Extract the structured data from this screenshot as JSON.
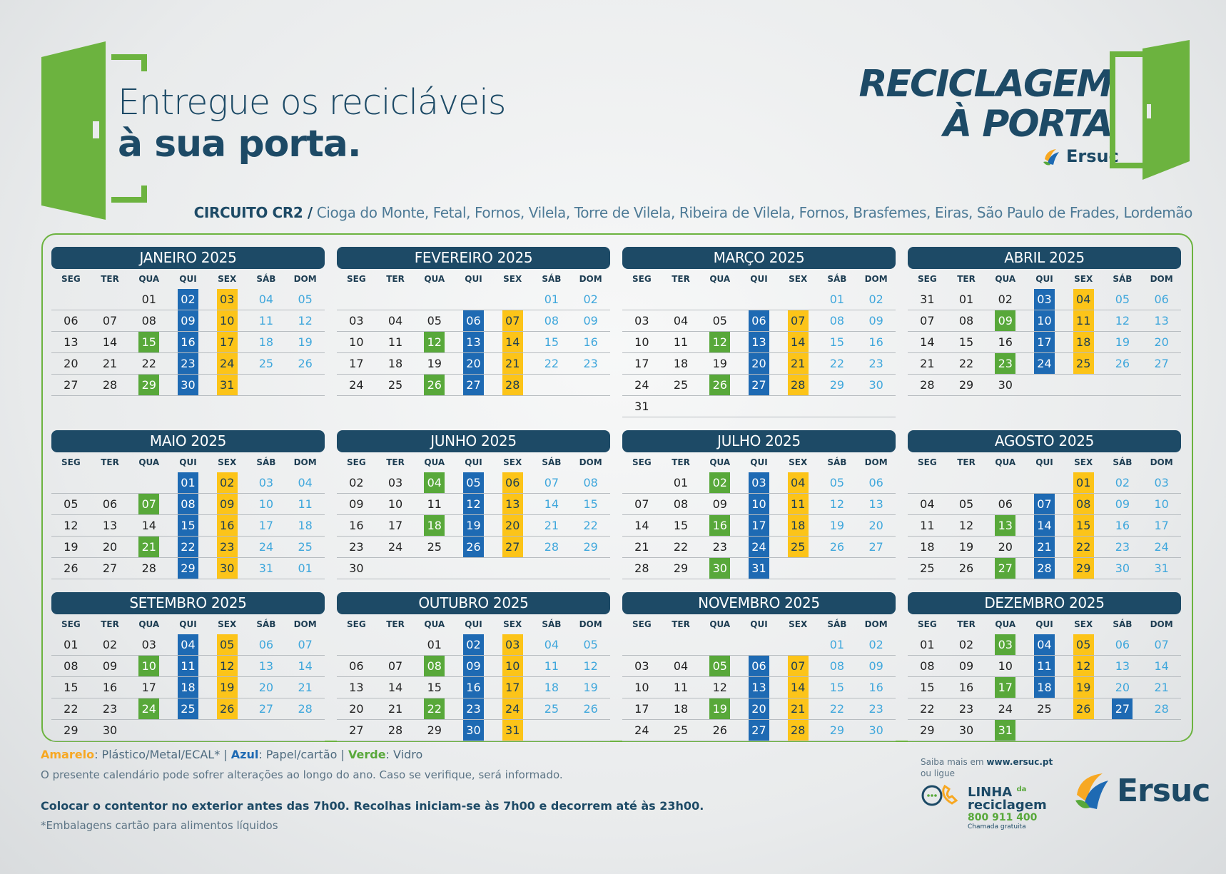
{
  "header": {
    "headline_line1": "Entregue os recicláveis",
    "headline_line2": "à sua porta.",
    "brand_line1": "RECICLAGEM",
    "brand_line2": "À PORTA",
    "brand_company": "Ersuc",
    "circuit_code": "CIRCUITO CR2 /",
    "circuit_places": " Cioga do Monte, Fetal, Fornos, Vilela, Torre de Vilela, Ribeira de Vilela, Fornos, Brasfemes, Eiras, São Paulo de Frades, Lordemão"
  },
  "colors": {
    "yellow": "#fcc419",
    "blue": "#1e6ab3",
    "green": "#58a83a",
    "navy": "#1d4a66",
    "weekend": "#3fa7dc"
  },
  "weekdays": [
    "SEG",
    "TER",
    "QUA",
    "QUI",
    "SEX",
    "SÁB",
    "DOM"
  ],
  "months": [
    {
      "title": "JANEIRO 2025",
      "offset": 2,
      "days": 31,
      "yellow": [
        3,
        10,
        17,
        24,
        31
      ],
      "blue": [
        2,
        9,
        16,
        23,
        30
      ],
      "green": [
        15,
        29
      ],
      "trailing": []
    },
    {
      "title": "FEVEREIRO 2025",
      "offset": 5,
      "days": 28,
      "yellow": [
        7,
        14,
        21,
        28
      ],
      "blue": [
        6,
        13,
        20,
        27
      ],
      "green": [
        12,
        26
      ],
      "trailing": []
    },
    {
      "title": "MARÇO 2025",
      "offset": 5,
      "days": 31,
      "yellow": [
        7,
        14,
        21,
        28
      ],
      "blue": [
        6,
        13,
        20,
        27
      ],
      "green": [
        12,
        26
      ],
      "trailing": []
    },
    {
      "title": "ABRIL 2025",
      "offset": 1,
      "days": 30,
      "leading": [
        "31"
      ],
      "yellow": [
        4,
        11,
        18,
        25
      ],
      "blue": [
        3,
        10,
        17,
        24
      ],
      "green": [
        9,
        23
      ],
      "trailing": []
    },
    {
      "title": "MAIO 2025",
      "offset": 3,
      "days": 31,
      "yellow": [
        2,
        9,
        16,
        23,
        30
      ],
      "blue": [
        1,
        8,
        15,
        22,
        29
      ],
      "green": [
        7,
        21
      ],
      "trailing": [
        "01"
      ]
    },
    {
      "title": "JUNHO 2025",
      "offset": 0,
      "days": 30,
      "leading": [
        "02"
      ],
      "start": 3,
      "yellow": [
        6,
        13,
        20,
        27
      ],
      "blue": [
        5,
        12,
        19,
        26
      ],
      "green": [
        4,
        18
      ],
      "trailing": []
    },
    {
      "title": "JULHO 2025",
      "offset": 1,
      "days": 31,
      "yellow": [
        4,
        11,
        18,
        25
      ],
      "blue": [
        3,
        10,
        17,
        24,
        31
      ],
      "green": [
        2,
        16,
        30
      ],
      "trailing": []
    },
    {
      "title": "AGOSTO 2025",
      "offset": 4,
      "days": 31,
      "yellow": [
        1,
        8,
        15,
        22,
        29
      ],
      "blue": [
        7,
        14,
        21,
        28
      ],
      "green": [
        13,
        27
      ],
      "trailing": []
    },
    {
      "title": "SETEMBRO 2025",
      "offset": 0,
      "days": 30,
      "yellow": [
        5,
        12,
        19,
        26
      ],
      "blue": [
        4,
        11,
        18,
        25
      ],
      "green": [
        10,
        24
      ],
      "trailing": []
    },
    {
      "title": "OUTUBRO 2025",
      "offset": 2,
      "days": 31,
      "yellow": [
        3,
        10,
        17,
        24,
        31
      ],
      "blue": [
        2,
        9,
        16,
        23,
        30
      ],
      "green": [
        8,
        22
      ],
      "trailing": []
    },
    {
      "title": "NOVEMBRO 2025",
      "offset": 5,
      "days": 30,
      "yellow": [
        7,
        14,
        21,
        28
      ],
      "blue": [
        6,
        13,
        20,
        27
      ],
      "green": [
        5,
        19
      ],
      "trailing": []
    },
    {
      "title": "DEZEMBRO 2025",
      "offset": 0,
      "days": 31,
      "yellow": [
        5,
        12,
        19,
        26
      ],
      "blue": [
        4,
        11,
        18,
        27
      ],
      "green": [
        3,
        17,
        31
      ],
      "trailing": []
    }
  ],
  "legend": {
    "yellow_label": "Amarelo",
    "yellow_text": ": Plástico/Metal/ECAL* | ",
    "blue_label": "Azul",
    "blue_text": ": Papel/cartão  | ",
    "green_label": "Verde",
    "green_text": ": Vidro"
  },
  "footer": {
    "note": "O presente calendário pode sofrer alterações ao longo do ano. Caso se verifique, será informado.",
    "instructions": "Colocar o contentor no exterior antes das 7h00. Recolhas iniciam-se às 7h00 e decorrem até às 23h00.",
    "footnote": "*Embalagens cartão para alimentos líquidos",
    "info_prefix": "Saiba mais em ",
    "info_site": "www.ersuc.pt",
    "info_line2": "ou ligue",
    "hotline_title1": "LINHA",
    "hotline_da": "da",
    "hotline_title2": "reciclagem",
    "hotline_number": "800 911 400",
    "hotline_sub": "Chamada gratuita",
    "company": "Ersuc"
  }
}
